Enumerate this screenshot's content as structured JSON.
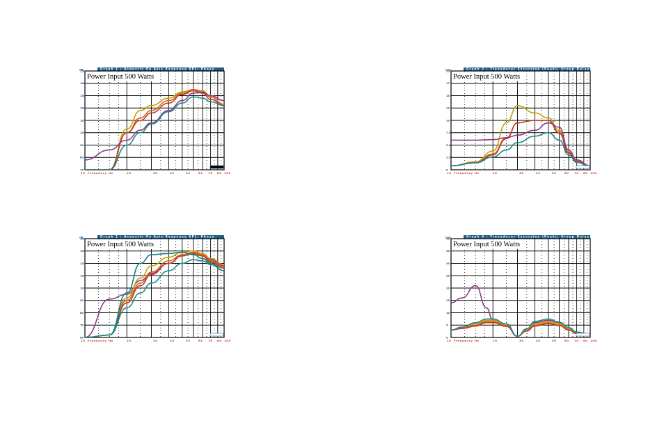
{
  "colors": {
    "olive": "#bfa200",
    "orange": "#d9661e",
    "red": "#c0392b",
    "purple": "#8e3b86",
    "teal": "#1a8c8a",
    "tealDark": "#0f7f86",
    "header": "#1f5f8b"
  },
  "chart_data": [
    {
      "type": "line",
      "header": "Graph 1 : Acoustic On Axis Response  SPL: Phase",
      "annotation": "Power Input 500 Watts",
      "y_unit": "dB",
      "ylim": [
        70,
        150
      ],
      "y_ticks": [
        "150",
        "140",
        "130",
        "120",
        "110",
        "100",
        "90",
        "80",
        "70"
      ],
      "x_tick_labels": [
        "10",
        "Frequency",
        "Hz",
        "20",
        "30",
        "40",
        "50",
        "60",
        "70",
        "80",
        "100"
      ],
      "x": [
        10,
        15,
        20,
        25,
        30,
        40,
        50,
        60,
        70,
        80,
        100
      ],
      "series": [
        {
          "color": "#bfa200",
          "values": [
            70,
            70,
            103,
            118,
            122,
            128,
            133,
            135,
            134,
            129,
            123
          ]
        },
        {
          "color": "#d9661e",
          "values": [
            70,
            70,
            100,
            112,
            118,
            126,
            132,
            135,
            133,
            129,
            123
          ]
        },
        {
          "color": "#c0392b",
          "values": [
            70,
            70,
            100,
            110,
            116,
            124,
            131,
            134,
            132,
            127,
            122
          ]
        },
        {
          "color": "#8e3b86",
          "values": [
            78,
            86,
            94,
            102,
            108,
            118,
            126,
            132,
            133,
            130,
            126
          ]
        },
        {
          "color": "#1a8c8a",
          "values": [
            70,
            70,
            90,
            100,
            107,
            117,
            124,
            129,
            128,
            125,
            122
          ]
        }
      ]
    },
    {
      "type": "line",
      "header": "Graph 2 : Transducer Excursion (Peak); Group Delay",
      "annotation": "Power Input 500 Watts",
      "y_unit": "mm",
      "ylim": [
        0,
        20
      ],
      "y_ticks": [
        "20",
        "17",
        "15",
        "12",
        "10",
        "7.5",
        "5.0",
        "2.5",
        "0"
      ],
      "x_tick_labels": [
        "10",
        "Frequency",
        "Hz",
        "20",
        "30",
        "40",
        "50",
        "60",
        "70",
        "80",
        "100"
      ],
      "x": [
        10,
        15,
        20,
        25,
        30,
        40,
        50,
        60,
        70,
        80,
        100
      ],
      "series": [
        {
          "color": "#bfa200",
          "values": [
            0.8,
            1.6,
            3.8,
            9.5,
            13.0,
            11.5,
            10.5,
            8.0,
            4.0,
            2.0,
            0.8
          ]
        },
        {
          "color": "#d9661e",
          "values": [
            0.8,
            1.5,
            3.2,
            6.5,
            9.5,
            10.0,
            10.0,
            7.6,
            3.6,
            1.8,
            0.7
          ]
        },
        {
          "color": "#c0392b",
          "values": [
            0.8,
            1.4,
            3.0,
            6.3,
            9.5,
            10.0,
            10.0,
            7.4,
            3.4,
            1.6,
            0.6
          ]
        },
        {
          "color": "#8e3b86",
          "values": [
            6.0,
            6.0,
            6.1,
            6.5,
            7.0,
            8.0,
            9.5,
            8.6,
            4.0,
            2.0,
            0.8
          ]
        },
        {
          "color": "#1a8c8a",
          "values": [
            0.8,
            1.4,
            2.6,
            4.0,
            5.5,
            6.8,
            7.5,
            6.0,
            3.0,
            1.5,
            0.6
          ]
        }
      ]
    },
    {
      "type": "line",
      "header": "Graph 1 : Acoustic On Axis Response  SPL: Phase",
      "annotation": "Power Input 500 Watts",
      "y_unit": "dB",
      "ylim": [
        60,
        140
      ],
      "y_ticks": [
        "140",
        "130",
        "120",
        "110",
        "100",
        "90",
        "80",
        "70",
        "60"
      ],
      "x_tick_labels": [
        "10",
        "Frequency",
        "Hz",
        "20",
        "30",
        "40",
        "50",
        "60",
        "70",
        "80",
        "100"
      ],
      "x": [
        10,
        15,
        20,
        25,
        30,
        40,
        50,
        60,
        70,
        80,
        100
      ],
      "series": [
        {
          "color": "#8e3b86",
          "values": [
            60,
            91,
            95,
            106,
            112,
            120,
            126,
            128,
            127,
            123,
            118
          ]
        },
        {
          "color": "#bfa200",
          "values": [
            60,
            62,
            92,
            108,
            118,
            125,
            129,
            130,
            128,
            124,
            119
          ]
        },
        {
          "color": "#d9661e",
          "values": [
            60,
            62,
            90,
            104,
            113,
            122,
            127,
            129,
            127,
            122,
            117
          ]
        },
        {
          "color": "#c0392b",
          "values": [
            60,
            62,
            88,
            102,
            111,
            120,
            126,
            128,
            126,
            121,
            116
          ]
        },
        {
          "color": "#0f7f86",
          "values": [
            60,
            62,
            96,
            120,
            127,
            128,
            129,
            127,
            124,
            120,
            114
          ]
        },
        {
          "color": "#1a8c8a",
          "values": [
            60,
            62,
            84,
            96,
            104,
            114,
            120,
            123,
            122,
            119,
            114
          ]
        }
      ]
    },
    {
      "type": "line",
      "header": "Graph 4 : Transducer Excursion (Peak); Group Delay",
      "annotation": "Power Input 500 Watts",
      "y_unit": "mm",
      "ylim": [
        0,
        40
      ],
      "y_ticks": [
        "40",
        "35",
        "30",
        "25",
        "20",
        "15",
        "10",
        "5",
        "0"
      ],
      "x_tick_labels": [
        "10",
        "Frequency",
        "Hz",
        "20",
        "30",
        "40",
        "50",
        "60",
        "70",
        "80",
        "100"
      ],
      "x": [
        10,
        12,
        15,
        18,
        20,
        25,
        30,
        35,
        40,
        50,
        60,
        70,
        80,
        100
      ],
      "series": [
        {
          "color": "#8e3b86",
          "values": [
            14,
            16,
            21,
            12,
            7,
            5,
            0.5,
            3,
            6,
            7,
            6,
            4,
            2,
            1
          ]
        },
        {
          "color": "#bfa200",
          "values": [
            3,
            4,
            5.5,
            7,
            7,
            5,
            0.5,
            3,
            5.5,
            6.5,
            5.5,
            3.5,
            2,
            1
          ]
        },
        {
          "color": "#d9661e",
          "values": [
            3,
            3.8,
            5,
            6.5,
            6.5,
            4.8,
            0.5,
            2.8,
            5,
            6,
            5,
            3.2,
            1.8,
            0.9
          ]
        },
        {
          "color": "#c0392b",
          "values": [
            3,
            3.6,
            4.6,
            6,
            6,
            4.5,
            0.5,
            2.6,
            4.6,
            5.6,
            4.8,
            3,
            1.6,
            0.8
          ]
        },
        {
          "color": "#1a8c8a",
          "values": [
            3,
            4.2,
            6,
            7.5,
            7.5,
            5.5,
            0.5,
            3.5,
            6.5,
            7.5,
            6.2,
            4,
            2.2,
            1.1
          ]
        }
      ]
    }
  ]
}
